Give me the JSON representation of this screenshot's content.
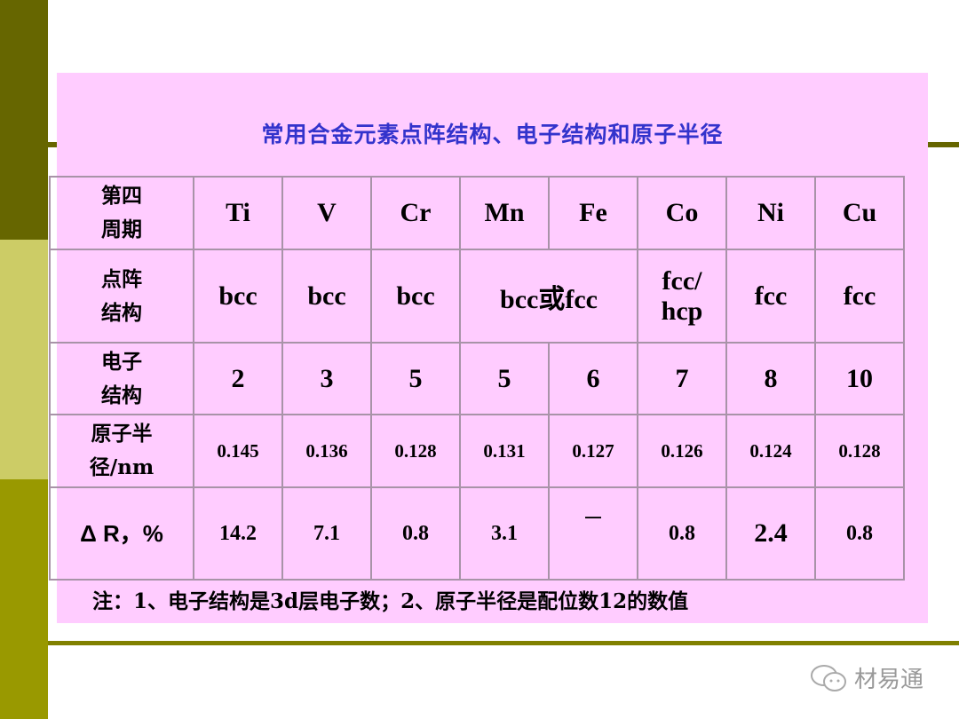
{
  "title": "常用合金元素点阵结构、电子结构和原子半径",
  "table": {
    "header": {
      "label": [
        "第四",
        "周期"
      ],
      "cells": [
        "Ti",
        "V",
        "Cr",
        "Mn",
        "Fe",
        "Co",
        "Ni",
        "Cu"
      ]
    },
    "lattice": {
      "label": [
        "点阵",
        "结构"
      ],
      "cells": [
        "bcc",
        "bcc",
        "bcc",
        "bcc或fcc",
        "fcc/",
        "hcp",
        "fcc",
        "fcc"
      ]
    },
    "electron": {
      "label": [
        "电子",
        "结构"
      ],
      "cells": [
        "2",
        "3",
        "5",
        "5",
        "6",
        "7",
        "8",
        "10"
      ]
    },
    "radius": {
      "label": [
        "原子半",
        "径/nm"
      ],
      "cells": [
        "0.145",
        "0.136",
        "0.128",
        "0.131",
        "0.127",
        "0.126",
        "0.124",
        "0.128"
      ]
    },
    "delta": {
      "label": "Δ R，%",
      "cells": [
        "14.2",
        "7.1",
        "0.8",
        "3.1",
        "—",
        "0.8",
        "2.4",
        "0.8"
      ]
    }
  },
  "note": "注：1、电子结构是3d层电子数；2、原子半径是配位数12的数值",
  "watermark": {
    "icon": "wechat-icon",
    "text": "材易通"
  },
  "colors": {
    "bar_dark": "#666600",
    "bar_light": "#cccc66",
    "bar_mid": "#999900",
    "panel": "#ffccff",
    "title": "#3333cc"
  }
}
